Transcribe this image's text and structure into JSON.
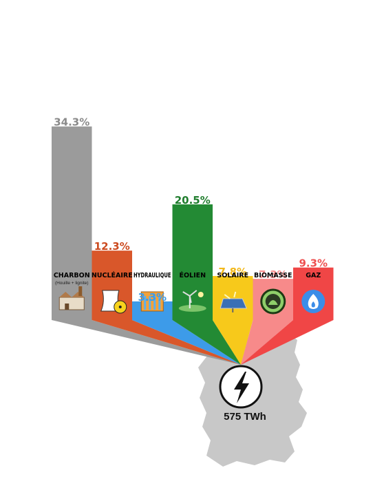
{
  "chart_data": {
    "type": "bar",
    "categories": [
      "CHARBON",
      "NUCLÉAIRE",
      "HYDRAULIQUE",
      "ÉOLIEN",
      "SOLAIRE",
      "BIOMASSE",
      "GAZ"
    ],
    "values": [
      34.3,
      12.3,
      3.3,
      20.5,
      7.8,
      7.3,
      9.3
    ],
    "value_labels": [
      "34.3%",
      "12.3%",
      "3.3%",
      "20.5%",
      "7.8%",
      "7.3%",
      "9.3%"
    ],
    "category_sublabels": [
      "(Houille + lignite)",
      "",
      "",
      "",
      "",
      "",
      ""
    ],
    "colors": [
      "#9b9b9b",
      "#d9572a",
      "#3d9be9",
      "#238a34",
      "#f7c91b",
      "#f78a8a",
      "#f04646"
    ],
    "label_colors": [
      "#8a8a8a",
      "#cc4a1f",
      "#3d9be9",
      "#1f7d2d",
      "#f2b81a",
      "#f59090",
      "#ee5050"
    ],
    "icons": [
      "factory-icon",
      "nuclear-plant-icon",
      "dam-icon",
      "wind-turbine-icon",
      "solar-panel-icon",
      "biomass-icon",
      "gas-flame-icon"
    ],
    "total": {
      "label": "575 TWh",
      "icon": "lightning-bolt-icon"
    },
    "map_icon": "germany-map-silhouette"
  }
}
